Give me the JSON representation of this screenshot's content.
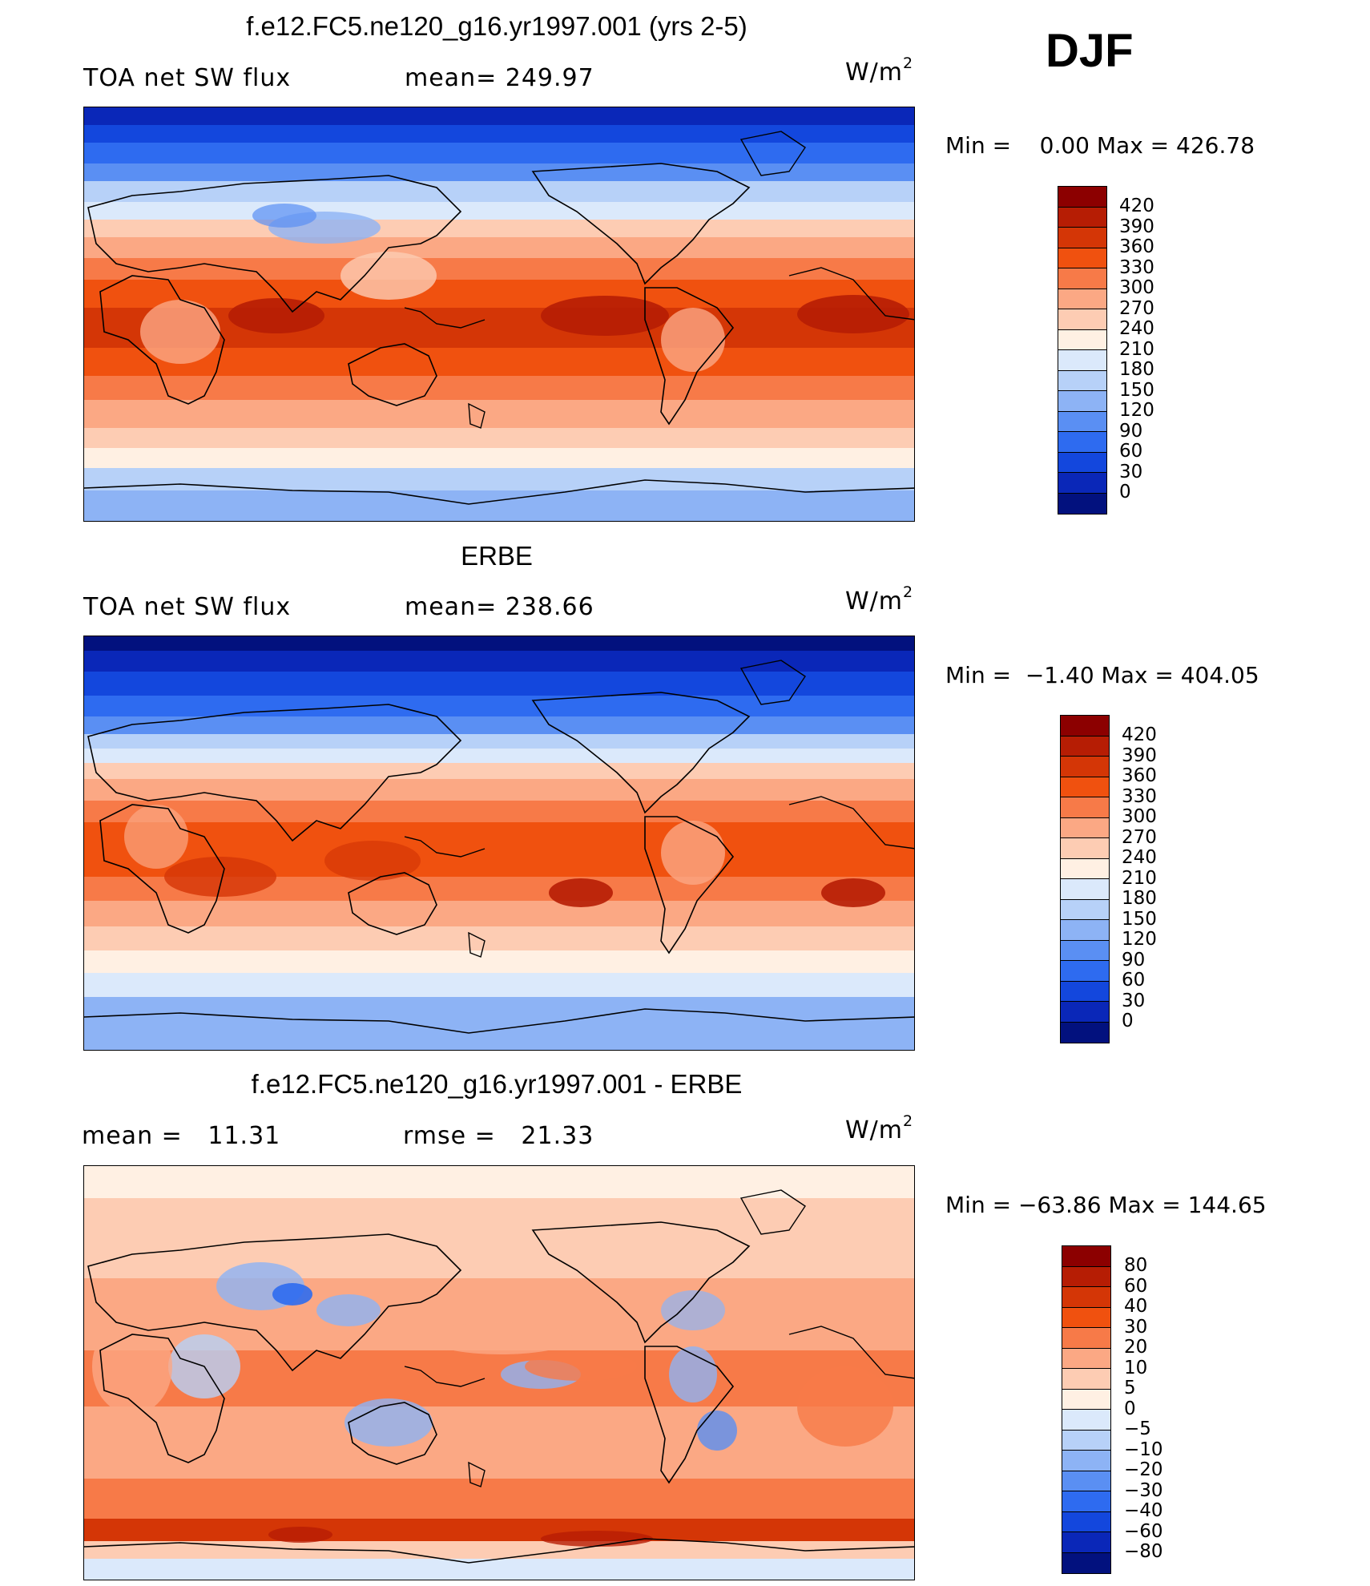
{
  "season": "DJF",
  "panels": [
    {
      "title": "f.e12.FC5.ne120_g16.yr1997.001 (yrs 2-5)",
      "left_label": "TOA net SW flux",
      "mid_label": "mean= 249.97",
      "units": "W/m",
      "units_exp": "2",
      "minmax": "Min =    0.00 Max = 426.78",
      "colorbar_ticks": [
        "420",
        "390",
        "360",
        "330",
        "300",
        "270",
        "240",
        "210",
        "180",
        "150",
        "120",
        "90",
        "60",
        "30",
        "0"
      ],
      "colorbar_colors": [
        "#8c0000",
        "#b61d04",
        "#d43606",
        "#f0510f",
        "#f77a48",
        "#fba884",
        "#fdccb3",
        "#fff0e3",
        "#dbe9fb",
        "#b7d1f8",
        "#8db3f5",
        "#5a8ff3",
        "#2e6bf0",
        "#1347dd",
        "#0a27b8",
        "#02117e"
      ]
    },
    {
      "title": "ERBE",
      "left_label": "TOA net SW flux",
      "mid_label": "mean= 238.66",
      "units": "W/m",
      "units_exp": "2",
      "minmax": "Min =  −1.40 Max = 404.05",
      "colorbar_ticks": [
        "420",
        "390",
        "360",
        "330",
        "300",
        "270",
        "240",
        "210",
        "180",
        "150",
        "120",
        "90",
        "60",
        "30",
        "0"
      ],
      "colorbar_colors": [
        "#8c0000",
        "#b61d04",
        "#d43606",
        "#f0510f",
        "#f77a48",
        "#fba884",
        "#fdccb3",
        "#fff0e3",
        "#dbe9fb",
        "#b7d1f8",
        "#8db3f5",
        "#5a8ff3",
        "#2e6bf0",
        "#1347dd",
        "#0a27b8",
        "#02117e"
      ]
    },
    {
      "title": "f.e12.FC5.ne120_g16.yr1997.001 - ERBE",
      "left_label": "mean =   11.31",
      "mid_label": "rmse =   21.33",
      "units": "W/m",
      "units_exp": "2",
      "minmax": "Min = −63.86 Max = 144.65",
      "colorbar_ticks": [
        "80",
        "60",
        "40",
        "30",
        "20",
        "10",
        "5",
        "0",
        "−5",
        "−10",
        "−20",
        "−30",
        "−40",
        "−60",
        "−80"
      ],
      "colorbar_colors": [
        "#8c0000",
        "#b61d04",
        "#d43606",
        "#f0510f",
        "#f77a48",
        "#fba884",
        "#fdccb3",
        "#fff0e3",
        "#dbe9fb",
        "#b7d1f8",
        "#8db3f5",
        "#5a8ff3",
        "#2e6bf0",
        "#1347dd",
        "#0a27b8",
        "#02117e"
      ]
    }
  ]
}
